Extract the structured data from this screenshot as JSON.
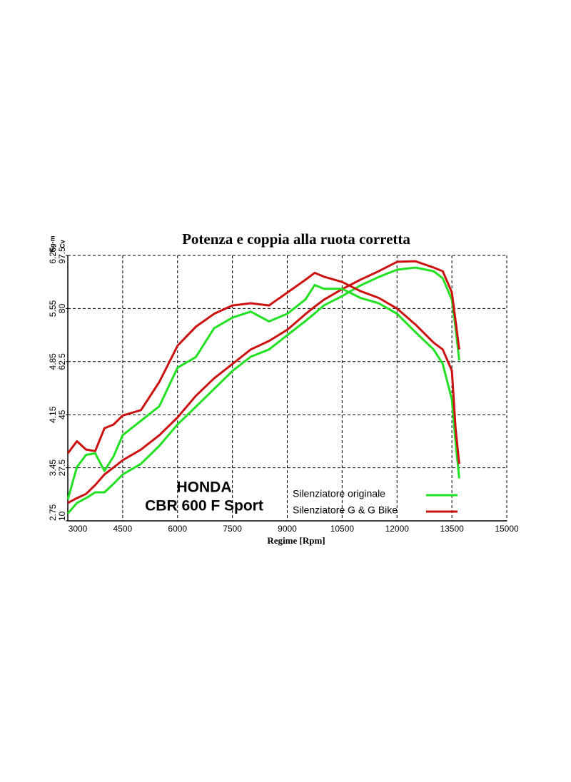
{
  "chart_data": {
    "type": "line",
    "title": "Potenza e coppia alla ruota corretta",
    "x_label": "Regime [Rpm]",
    "y_label": "Kg-m",
    "y2_label": "Cv",
    "annotations": [
      "HONDA",
      "CBR 600 F Sport"
    ],
    "x": [
      3000,
      3250,
      3500,
      3750,
      4000,
      4250,
      4500,
      5000,
      5500,
      6000,
      6500,
      7000,
      7500,
      8000,
      8500,
      9000,
      9500,
      9750,
      10000,
      10500,
      11000,
      11500,
      12000,
      12500,
      13000,
      13250,
      13500,
      13600,
      13700
    ],
    "xlim": [
      3000,
      15000
    ],
    "xticks": [
      3000,
      4500,
      6000,
      7500,
      9000,
      10500,
      12000,
      13500,
      15000
    ],
    "ylim": [
      2.75,
      6.25
    ],
    "yticks": [
      2.75,
      3.45,
      4.15,
      4.85,
      5.55,
      6.25
    ],
    "y2lim": [
      10,
      97.5
    ],
    "y2ticks": [
      10,
      27.5,
      45,
      62.5,
      80,
      97.5
    ],
    "grid": true,
    "series": [
      {
        "name": "Silenziatore originale",
        "color": "#22e022",
        "axis": "y2",
        "values": [
          12.4,
          15.9,
          17.5,
          19.4,
          19.4,
          22.2,
          25.3,
          28.8,
          34.7,
          41.8,
          47.6,
          53.5,
          59.4,
          64.1,
          66.5,
          71.2,
          75.9,
          78.4,
          81.0,
          84.1,
          87.6,
          90.4,
          92.8,
          93.5,
          92.3,
          90.0,
          82.9,
          73.5,
          62.9
        ]
      },
      {
        "name": "Silenziatore G & G Bike",
        "color": "#cc1111",
        "axis": "y2",
        "values": [
          15.9,
          17.5,
          18.9,
          21.8,
          25.3,
          27.6,
          30.0,
          33.5,
          38.2,
          44.1,
          51.2,
          57.0,
          61.7,
          66.5,
          69.3,
          73.0,
          78.2,
          80.6,
          82.9,
          86.4,
          89.5,
          92.3,
          95.4,
          95.6,
          93.5,
          92.3,
          85.3,
          75.9,
          66.5
        ]
      },
      {
        "name": "Silenziatore originale",
        "color": "#22e022",
        "axis": "y",
        "values": [
          3.03,
          3.46,
          3.62,
          3.64,
          3.41,
          3.6,
          3.88,
          4.07,
          4.26,
          4.77,
          4.91,
          5.29,
          5.43,
          5.51,
          5.38,
          5.48,
          5.67,
          5.86,
          5.81,
          5.81,
          5.69,
          5.62,
          5.48,
          5.24,
          5.01,
          4.82,
          4.35,
          3.79,
          3.31
        ]
      },
      {
        "name": "Silenziatore G & G Bike",
        "color": "#cc1111",
        "axis": "y",
        "values": [
          3.64,
          3.8,
          3.69,
          3.67,
          3.97,
          4.02,
          4.14,
          4.21,
          4.58,
          5.06,
          5.31,
          5.48,
          5.59,
          5.62,
          5.59,
          5.76,
          5.93,
          6.02,
          5.97,
          5.9,
          5.78,
          5.69,
          5.55,
          5.34,
          5.1,
          5.01,
          4.73,
          3.97,
          3.5
        ]
      }
    ]
  }
}
